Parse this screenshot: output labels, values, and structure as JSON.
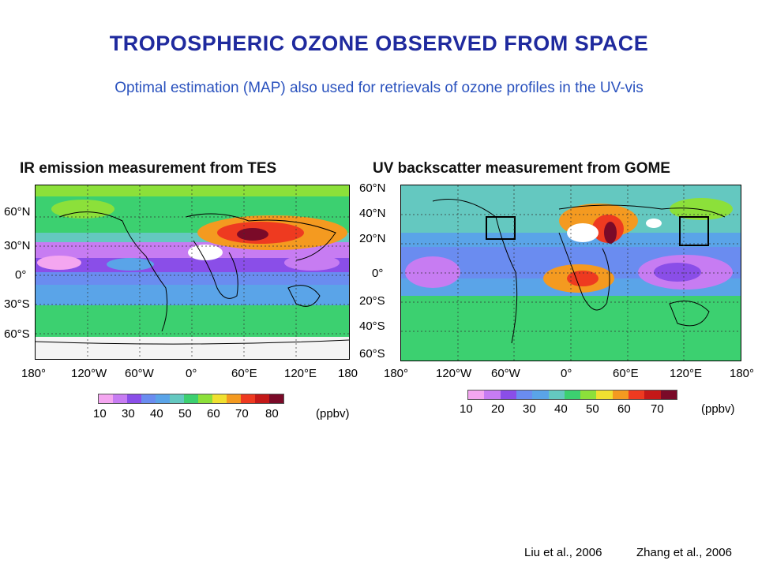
{
  "slide": {
    "title": "TROPOSPHERIC OZONE OBSERVED FROM SPACE",
    "subtitle": "Optimal estimation (MAP) also used for retrievals of ozone profiles in the UV-vis",
    "citations": [
      "Liu et al., 2006",
      "Zhang et al., 2006"
    ]
  },
  "panels": {
    "left": {
      "heading": "IR emission measurement from TES",
      "lat_labels": [
        "60°N",
        "30°N",
        "0°",
        "30°S",
        "60°S"
      ],
      "lon_labels": [
        "180°",
        "120°W",
        "60°W",
        "0°",
        "60°E",
        "120°E",
        "180"
      ],
      "colorbar_labels": [
        "10",
        "30",
        "40",
        "50",
        "60",
        "70",
        "80"
      ],
      "unit": "(ppbv)",
      "colorbar_colors": [
        "#f4a6f0",
        "#c77cf2",
        "#8a4ee8",
        "#6a8cf0",
        "#5aa4e8",
        "#64c8c0",
        "#3cd070",
        "#8ce03a",
        "#f0e030",
        "#f49a20",
        "#ee3a20",
        "#c41818",
        "#7a0a28"
      ]
    },
    "right": {
      "heading": "UV backscatter measurement from GOME",
      "lat_labels": [
        "60°N",
        "40°N",
        "20°N",
        "0°",
        "20°S",
        "40°S",
        "60°S"
      ],
      "lon_labels": [
        "180°",
        "120°W",
        "60°W",
        "0°",
        "60°E",
        "120°E",
        "180°"
      ],
      "colorbar_labels": [
        "10",
        "20",
        "30",
        "40",
        "50",
        "60",
        "70"
      ],
      "unit": "(ppbv)",
      "colorbar_colors": [
        "#f4a6f0",
        "#c77cf2",
        "#8a4ee8",
        "#6a8cf0",
        "#5aa4e8",
        "#64c8c0",
        "#3cd070",
        "#8ce03a",
        "#f0e030",
        "#f49a20",
        "#ee3a20",
        "#c41818",
        "#7a0a28"
      ]
    }
  }
}
